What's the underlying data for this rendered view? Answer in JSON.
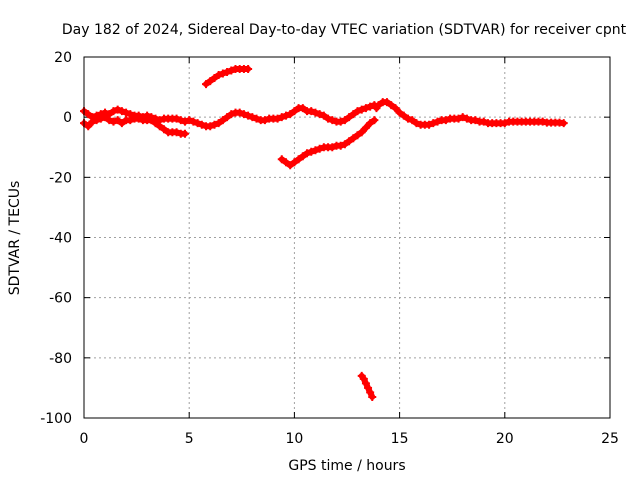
{
  "chart_data": {
    "type": "scatter",
    "title": "Day 182 of 2024, Sidereal Day-to-day VTEC variation (SDTVAR) for receiver cpnt",
    "xlabel": "GPS time / hours",
    "ylabel": "SDTVAR / TECUs",
    "xlim": [
      0,
      25
    ],
    "ylim": [
      -100,
      20
    ],
    "xticks": [
      0,
      5,
      10,
      15,
      20,
      25
    ],
    "yticks": [
      -100,
      -80,
      -60,
      -40,
      -20,
      0,
      20
    ],
    "grid": true,
    "marker": "+",
    "series": [
      {
        "name": "main",
        "color": "#ff0000",
        "x": [
          0.0,
          0.2,
          0.4,
          0.6,
          0.8,
          1.0,
          1.2,
          1.4,
          1.6,
          1.8,
          2.0,
          2.2,
          2.4,
          2.6,
          2.8,
          3.0,
          3.2,
          3.4,
          3.6,
          3.8,
          4.0,
          4.2,
          4.4,
          4.6,
          4.8,
          5.0,
          5.2,
          5.4,
          5.6,
          5.8,
          6.0,
          6.2,
          6.4,
          6.6,
          6.8,
          7.0,
          7.2,
          7.4,
          7.6,
          7.8,
          8.0,
          8.2,
          8.4,
          8.6,
          8.8,
          9.0,
          9.2,
          9.4,
          9.6,
          9.8,
          10.0,
          10.2,
          10.4,
          10.6,
          10.8,
          11.0,
          11.2,
          11.4,
          11.6,
          11.8,
          12.0,
          12.2,
          12.4,
          12.6,
          12.8,
          13.0,
          13.2,
          13.4,
          13.6,
          13.8
        ],
        "y": [
          2.0,
          1.0,
          0.0,
          0.5,
          1.0,
          1.5,
          1.0,
          2.0,
          2.5,
          2.0,
          1.5,
          1.0,
          0.5,
          0.5,
          0.0,
          0.5,
          0.0,
          -0.5,
          -1.0,
          -0.5,
          -0.5,
          -0.5,
          -0.5,
          -1.0,
          -1.5,
          -1.0,
          -1.5,
          -2.0,
          -2.5,
          -3.0,
          -3.0,
          -2.5,
          -2.0,
          -1.0,
          0.0,
          1.0,
          1.5,
          1.5,
          1.0,
          0.5,
          0.0,
          -0.5,
          -1.0,
          -1.0,
          -0.5,
          -0.5,
          -0.5,
          0.0,
          0.5,
          1.0,
          2.0,
          3.0,
          3.0,
          2.0,
          2.0,
          1.5,
          1.0,
          0.5,
          -0.5,
          -1.0,
          -1.5,
          -1.5,
          -1.0,
          0.0,
          1.0,
          2.0,
          2.5,
          3.0,
          3.5,
          4.0
        ]
      },
      {
        "name": "main-lower-branch",
        "color": "#ff0000",
        "x": [
          0.0,
          0.2,
          0.4,
          0.6,
          0.8,
          1.0,
          1.2,
          1.4,
          1.6,
          1.8,
          2.0,
          2.2,
          2.4,
          2.6,
          2.8,
          3.0,
          3.2,
          3.4,
          3.6,
          3.8,
          4.0,
          4.2,
          4.4,
          4.6,
          4.8
        ],
        "y": [
          -2.0,
          -3.0,
          -1.5,
          -1.0,
          -0.5,
          0.0,
          -1.0,
          -1.5,
          -1.0,
          -2.0,
          -1.0,
          -1.0,
          -0.5,
          -0.5,
          -1.0,
          -1.0,
          -1.0,
          -2.0,
          -3.0,
          -4.0,
          -5.0,
          -5.0,
          -5.0,
          -5.5,
          -5.5
        ]
      },
      {
        "name": "right-segment",
        "color": "#ff0000",
        "x": [
          13.9,
          14.0,
          14.2,
          14.4,
          14.6,
          14.8,
          15.0,
          15.2,
          15.4,
          15.6,
          15.8,
          16.0,
          16.2,
          16.4,
          16.6,
          16.8,
          17.0,
          17.2,
          17.4,
          17.6,
          17.8,
          18.0,
          18.2,
          18.4,
          18.6,
          18.8,
          19.0,
          19.2,
          19.4,
          19.6,
          19.8,
          20.0,
          20.2,
          20.4,
          20.6,
          20.8,
          21.0,
          21.2,
          21.4,
          21.6,
          21.8,
          22.0,
          22.2,
          22.4,
          22.6,
          22.8
        ],
        "y": [
          3.0,
          4.0,
          5.0,
          5.0,
          4.0,
          3.0,
          1.5,
          0.5,
          -0.5,
          -1.0,
          -2.0,
          -2.5,
          -2.5,
          -2.5,
          -2.0,
          -1.5,
          -1.0,
          -1.0,
          -0.5,
          -0.5,
          -0.5,
          0.0,
          -0.5,
          -1.0,
          -1.0,
          -1.5,
          -1.5,
          -2.0,
          -2.0,
          -2.0,
          -2.0,
          -2.0,
          -1.5,
          -1.5,
          -1.5,
          -1.5,
          -1.5,
          -1.5,
          -1.5,
          -1.5,
          -1.5,
          -1.8,
          -1.8,
          -1.8,
          -1.8,
          -2.0
        ]
      },
      {
        "name": "upper-arc",
        "color": "#ff0000",
        "x": [
          5.8,
          6.0,
          6.2,
          6.4,
          6.6,
          6.8,
          7.0,
          7.2,
          7.4,
          7.6,
          7.8
        ],
        "y": [
          11.0,
          12.0,
          13.0,
          14.0,
          14.5,
          15.0,
          15.5,
          16.0,
          16.0,
          16.0,
          16.0
        ]
      },
      {
        "name": "lower-arc",
        "color": "#ff0000",
        "x": [
          9.4,
          9.6,
          9.8,
          10.0,
          10.2,
          10.4,
          10.6,
          10.8,
          11.0,
          11.2,
          11.4,
          11.6,
          11.8,
          12.0,
          12.2,
          12.4,
          12.6,
          12.8,
          13.0,
          13.2,
          13.4,
          13.6,
          13.8
        ],
        "y": [
          -14.0,
          -15.0,
          -16.0,
          -15.0,
          -14.0,
          -13.0,
          -12.0,
          -11.5,
          -11.0,
          -10.5,
          -10.0,
          -10.0,
          -10.0,
          -9.5,
          -9.5,
          -9.0,
          -8.0,
          -7.0,
          -6.0,
          -5.0,
          -3.5,
          -2.0,
          -1.0
        ]
      },
      {
        "name": "outlier-streak",
        "color": "#ff0000",
        "x": [
          13.2,
          13.3,
          13.4,
          13.5,
          13.6,
          13.7
        ],
        "y": [
          -86.0,
          -87.0,
          -88.5,
          -90.0,
          -91.5,
          -93.0
        ]
      }
    ]
  }
}
